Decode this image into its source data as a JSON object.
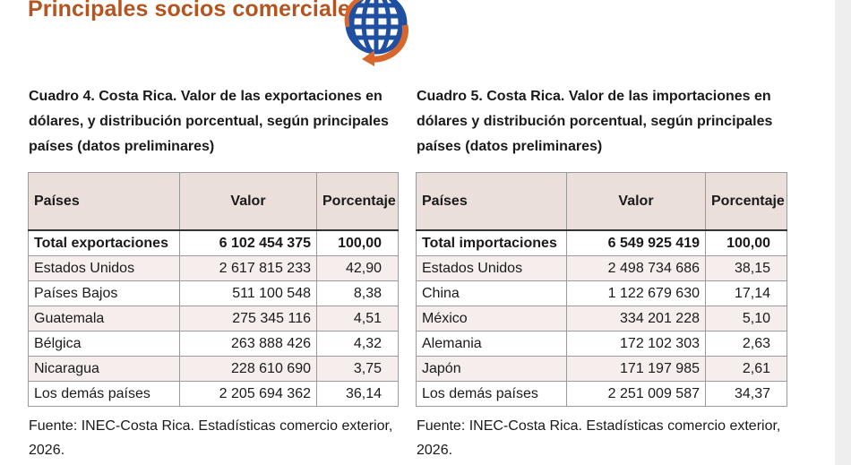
{
  "page": {
    "title": "Principales socios comerciales",
    "icon": "globe-arrows-icon",
    "colors": {
      "title": "#b5541f",
      "globe": "#1f4fa0",
      "arrow": "#d9662a",
      "header_bg": "#ebdfdc",
      "row_shade": "#f6eeed"
    }
  },
  "exports": {
    "caption": "Cuadro 4. Costa Rica. Valor de las exportaciones en dólares, y distribución  porcentual, según principales países (datos preliminares)",
    "headers": [
      "Países",
      "Valor",
      "Porcentaje"
    ],
    "total": {
      "country": "Total exportaciones",
      "value": "6 102 454 375",
      "percent": "100,00"
    },
    "rows": [
      {
        "country": "Estados Unidos",
        "value": "2 617 815 233",
        "percent": "42,90"
      },
      {
        "country": "Países Bajos",
        "value": "511 100 548",
        "percent": "8,38"
      },
      {
        "country": "Guatemala",
        "value": "275 345 116",
        "percent": "4,51"
      },
      {
        "country": "Bélgica",
        "value": "263 888 426",
        "percent": "4,32"
      },
      {
        "country": "Nicaragua",
        "value": "228 610 690",
        "percent": "3,75"
      },
      {
        "country": "Los demás países",
        "value": "2 205 694 362",
        "percent": "36,14"
      }
    ],
    "source": "Fuente: INEC-Costa Rica. Estadísticas comercio exterior, 2026."
  },
  "imports": {
    "caption": "Cuadro 5. Costa Rica. Valor de las importaciones en dólares y distribución porcentual, según principales países (datos preliminares)",
    "headers": [
      "Países",
      "Valor",
      "Porcentaje"
    ],
    "total": {
      "country": "Total importaciones",
      "value": "6 549 925 419",
      "percent": "100,00"
    },
    "rows": [
      {
        "country": "Estados Unidos",
        "value": "2 498 734 686",
        "percent": "38,15"
      },
      {
        "country": "China",
        "value": "1 122 679 630",
        "percent": "17,14"
      },
      {
        "country": "México",
        "value": "334 201 228",
        "percent": "5,10"
      },
      {
        "country": "Alemania",
        "value": "172 102 303",
        "percent": "2,63"
      },
      {
        "country": "Japón",
        "value": "171 197 985",
        "percent": "2,61"
      },
      {
        "country": "Los demás países",
        "value": "2 251 009 587",
        "percent": "34,37"
      }
    ],
    "source": "Fuente: INEC-Costa Rica. Estadísticas comercio exterior, 2026."
  }
}
